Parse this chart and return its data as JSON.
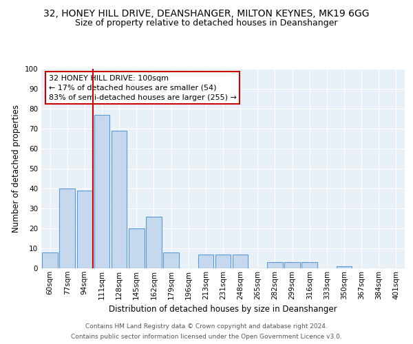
{
  "title": "32, HONEY HILL DRIVE, DEANSHANGER, MILTON KEYNES, MK19 6GG",
  "subtitle": "Size of property relative to detached houses in Deanshanger",
  "xlabel": "Distribution of detached houses by size in Deanshanger",
  "ylabel": "Number of detached properties",
  "categories": [
    "60sqm",
    "77sqm",
    "94sqm",
    "111sqm",
    "128sqm",
    "145sqm",
    "162sqm",
    "179sqm",
    "196sqm",
    "213sqm",
    "231sqm",
    "248sqm",
    "265sqm",
    "282sqm",
    "299sqm",
    "316sqm",
    "333sqm",
    "350sqm",
    "367sqm",
    "384sqm",
    "401sqm"
  ],
  "values": [
    8,
    40,
    39,
    77,
    69,
    20,
    26,
    8,
    0,
    7,
    7,
    7,
    0,
    3,
    3,
    3,
    0,
    1,
    0,
    0,
    0
  ],
  "bar_color": "#c5d8ed",
  "bar_edge_color": "#5b9bd5",
  "vline_color": "#cc0000",
  "vline_x": 2.5,
  "annotation_line1": "32 HONEY HILL DRIVE: 100sqm",
  "annotation_line2": "← 17% of detached houses are smaller (54)",
  "annotation_line3": "83% of semi-detached houses are larger (255) →",
  "annotation_box_color": "#ffffff",
  "annotation_box_edge": "#cc0000",
  "ylim": [
    0,
    100
  ],
  "yticks": [
    0,
    10,
    20,
    30,
    40,
    50,
    60,
    70,
    80,
    90,
    100
  ],
  "background_color": "#e8f0f8",
  "footer_line1": "Contains HM Land Registry data © Crown copyright and database right 2024.",
  "footer_line2": "Contains public sector information licensed under the Open Government Licence v3.0.",
  "title_fontsize": 10,
  "subtitle_fontsize": 9,
  "axis_label_fontsize": 8.5,
  "tick_fontsize": 7.5,
  "annotation_fontsize": 8,
  "footer_fontsize": 6.5
}
